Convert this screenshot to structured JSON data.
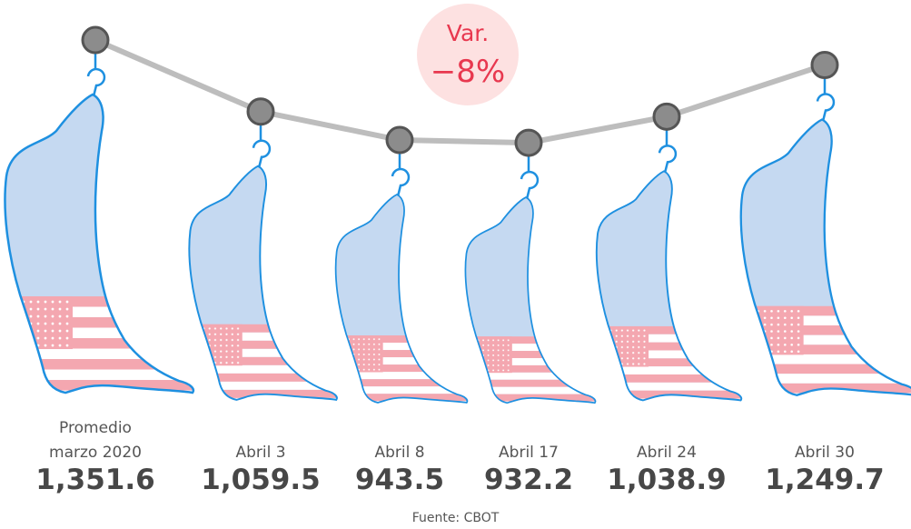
{
  "chart_data": {
    "type": "hanging-hams",
    "categories": [
      "Promedio marzo 2020",
      "Abril 3",
      "Abril 8",
      "Abril 17",
      "Abril 24",
      "Abril 30"
    ],
    "values": [
      1351.6,
      1059.5,
      943.5,
      932.2,
      1038.9,
      1249.7
    ],
    "value_labels": [
      "1,351.6",
      "1,059.5",
      "943.5",
      "932.2",
      "1,038.9",
      "1,249.7"
    ],
    "annotation": {
      "title": "Var.",
      "value": -8,
      "label": "−8%"
    },
    "source": "Fuente: CBOT",
    "color": "#c5d9f1"
  }
}
